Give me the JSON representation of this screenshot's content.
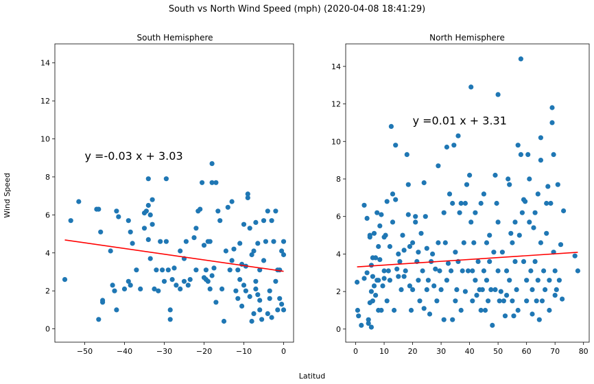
{
  "figure": {
    "suptitle": "South vs North Wind Speed (mph) (2020-04-08 18:41:29)",
    "xlabel": "Latitud",
    "ylabel": "Wind Speed"
  },
  "colors": {
    "points": "#1f77b4",
    "regression": "#ff0000"
  },
  "chart_data": [
    {
      "type": "scatter",
      "title": "South Hemisphere",
      "xlim": [
        -57.5,
        2.5
      ],
      "ylim": [
        -0.7,
        15
      ],
      "xticks": [
        -50,
        -40,
        -30,
        -20,
        -10,
        0
      ],
      "yticks": [
        0,
        2,
        4,
        6,
        8,
        10,
        12,
        14
      ],
      "grid": false,
      "annotation": {
        "text": "y =-0.03 x  + 3.03",
        "x": -50,
        "y": 8.9,
        "color": "#ff0000"
      },
      "regression": {
        "slope": -0.03,
        "intercept": 3.03,
        "x_range": [
          -55,
          0
        ]
      },
      "points": [
        [
          -55,
          2.6
        ],
        [
          -53.5,
          5.7
        ],
        [
          -51.5,
          6.7
        ],
        [
          -47,
          6.3
        ],
        [
          -46.5,
          6.3
        ],
        [
          -46.5,
          0.5
        ],
        [
          -46,
          5.1
        ],
        [
          -45.5,
          1.4
        ],
        [
          -45.5,
          1.5
        ],
        [
          -43.5,
          4.1
        ],
        [
          -43,
          2.3
        ],
        [
          -42.5,
          2.0
        ],
        [
          -42,
          1.0
        ],
        [
          -42,
          6.2
        ],
        [
          -41.5,
          5.9
        ],
        [
          -40,
          2.1
        ],
        [
          -39,
          5.7
        ],
        [
          -39,
          2.5
        ],
        [
          -38.5,
          5.1
        ],
        [
          -38,
          4.5
        ],
        [
          -38.5,
          2.3
        ],
        [
          -37,
          3.1
        ],
        [
          -36,
          2.1
        ],
        [
          -35,
          5.3
        ],
        [
          -35,
          6.1
        ],
        [
          -34.5,
          6.2
        ],
        [
          -34,
          6.5
        ],
        [
          -34,
          4.7
        ],
        [
          -34,
          7.9
        ],
        [
          -33.5,
          6.0
        ],
        [
          -33.5,
          3.7
        ],
        [
          -33,
          6.8
        ],
        [
          -33,
          5.5
        ],
        [
          -32.5,
          2.1
        ],
        [
          -32,
          3.1
        ],
        [
          -31.5,
          2.0
        ],
        [
          -31,
          4.6
        ],
        [
          -30.5,
          3.1
        ],
        [
          -30,
          2.5
        ],
        [
          -29.5,
          7.9
        ],
        [
          -29.5,
          4.6
        ],
        [
          -29,
          3.1
        ],
        [
          -28.5,
          1.0
        ],
        [
          -28.5,
          0.5
        ],
        [
          -28,
          2.6
        ],
        [
          -27.5,
          3.2
        ],
        [
          -27,
          2.3
        ],
        [
          -26,
          4.1
        ],
        [
          -26,
          2.1
        ],
        [
          -25,
          3.7
        ],
        [
          -25,
          2.5
        ],
        [
          -24.5,
          4.6
        ],
        [
          -24,
          2.3
        ],
        [
          -23.5,
          2.6
        ],
        [
          -22.5,
          4.8
        ],
        [
          -22,
          5.3
        ],
        [
          -22,
          3.1
        ],
        [
          -21.5,
          6.2
        ],
        [
          -21,
          6.3
        ],
        [
          -20.5,
          7.7
        ],
        [
          -20,
          4.4
        ],
        [
          -20,
          2.7
        ],
        [
          -19.5,
          2.6
        ],
        [
          -19.5,
          3.1
        ],
        [
          -19,
          4.6
        ],
        [
          -19,
          2.5
        ],
        [
          -18.5,
          2.1
        ],
        [
          -18,
          8.7
        ],
        [
          -18,
          7.7
        ],
        [
          -18.5,
          4.6
        ],
        [
          -18,
          2.8
        ],
        [
          -17.5,
          3.2
        ],
        [
          -17,
          1.4
        ],
        [
          -17,
          7.7
        ],
        [
          -16.5,
          6.2
        ],
        [
          -16,
          5.7
        ],
        [
          -15.5,
          2.1
        ],
        [
          -15,
          0.4
        ],
        [
          -14.5,
          4.1
        ],
        [
          -14,
          6.4
        ],
        [
          -13.5,
          3.1
        ],
        [
          -13,
          6.7
        ],
        [
          -13,
          3.6
        ],
        [
          -12.5,
          4.2
        ],
        [
          -12,
          2.0
        ],
        [
          -11.5,
          3.1
        ],
        [
          -11.5,
          1.6
        ],
        [
          -11,
          2.6
        ],
        [
          -11,
          4.5
        ],
        [
          -10.5,
          1.2
        ],
        [
          -10.5,
          3.4
        ],
        [
          -10,
          5.5
        ],
        [
          -10,
          2.3
        ],
        [
          -9.5,
          2.0
        ],
        [
          -9.5,
          3.3
        ],
        [
          -9,
          7.1
        ],
        [
          -9,
          6.9
        ],
        [
          -8.5,
          1.7
        ],
        [
          -8.5,
          5.3
        ],
        [
          -8,
          3.9
        ],
        [
          -8,
          0.4
        ],
        [
          -7.5,
          0.8
        ],
        [
          -7.5,
          4.1
        ],
        [
          -7,
          2.5
        ],
        [
          -7,
          2.1
        ],
        [
          -7,
          5.6
        ],
        [
          -6.5,
          1.8
        ],
        [
          -6.5,
          4.5
        ],
        [
          -6,
          3.1
        ],
        [
          -6,
          1.5
        ],
        [
          -6,
          1.0
        ],
        [
          -5.5,
          0.5
        ],
        [
          -5,
          3.6
        ],
        [
          -5,
          5.7
        ],
        [
          -4.5,
          4.6
        ],
        [
          -4,
          6.2
        ],
        [
          -4,
          0.8
        ],
        [
          -3.5,
          2.0
        ],
        [
          -3.5,
          1.6
        ],
        [
          -3,
          5.7
        ],
        [
          -3,
          0.6
        ],
        [
          -2.5,
          4.6
        ],
        [
          -2,
          2.5
        ],
        [
          -2,
          6.2
        ],
        [
          -1.5,
          1.0
        ],
        [
          -1.5,
          3.1
        ],
        [
          -1,
          3.1
        ],
        [
          -1,
          1.6
        ],
        [
          -0.5,
          4.1
        ],
        [
          -0.5,
          1.3
        ],
        [
          0,
          4.6
        ],
        [
          0,
          3.9
        ],
        [
          0,
          1.0
        ]
      ]
    },
    {
      "type": "scatter",
      "title": "North Hemisphere",
      "xlim": [
        -3.5,
        82
      ],
      "ylim": [
        -0.7,
        15.2
      ],
      "xticks": [
        0,
        10,
        20,
        30,
        40,
        50,
        60,
        70,
        80
      ],
      "yticks": [
        0,
        2,
        4,
        6,
        8,
        10,
        12,
        14
      ],
      "grid": false,
      "annotation": {
        "text": "y =0.01 x  + 3.31",
        "x": 20,
        "y": 10.9,
        "color": "#ff0000"
      },
      "regression": {
        "slope": 0.01,
        "intercept": 3.31,
        "x_range": [
          0.5,
          78
        ]
      },
      "points": [
        [
          0.5,
          2.5
        ],
        [
          0.7,
          1.0
        ],
        [
          1,
          0.7
        ],
        [
          2,
          0.2
        ],
        [
          3,
          6.6
        ],
        [
          3,
          2.7
        ],
        [
          4,
          5.9
        ],
        [
          4,
          3.0
        ],
        [
          4.5,
          0.5
        ],
        [
          4.5,
          0.3
        ],
        [
          5,
          4.9
        ],
        [
          5,
          5.0
        ],
        [
          5,
          1.4
        ],
        [
          5.5,
          2.0
        ],
        [
          5.5,
          0.1
        ],
        [
          5.5,
          3.4
        ],
        [
          6,
          2.8
        ],
        [
          6,
          1.5
        ],
        [
          6,
          3.8
        ],
        [
          6.5,
          5.1
        ],
        [
          6.5,
          2.3
        ],
        [
          7,
          3.8
        ],
        [
          7,
          1.8
        ],
        [
          7.5,
          6.2
        ],
        [
          7.5,
          2.6
        ],
        [
          8,
          4.4
        ],
        [
          8,
          2.6
        ],
        [
          8,
          1.0
        ],
        [
          8.5,
          5.5
        ],
        [
          8.5,
          3.7
        ],
        [
          9,
          1.0
        ],
        [
          9,
          6.1
        ],
        [
          9.5,
          2.3
        ],
        [
          10,
          4.9
        ],
        [
          10,
          3.1
        ],
        [
          10,
          2.7
        ],
        [
          10.5,
          5.0
        ],
        [
          11,
          6.8
        ],
        [
          11,
          1.5
        ],
        [
          11.5,
          3.1
        ],
        [
          12,
          4.4
        ],
        [
          12,
          2.6
        ],
        [
          12.5,
          10.8
        ],
        [
          13,
          7.2
        ],
        [
          13,
          5.7
        ],
        [
          13.5,
          1.0
        ],
        [
          14,
          9.8
        ],
        [
          14,
          6.9
        ],
        [
          14.5,
          3.2
        ],
        [
          15,
          4.0
        ],
        [
          15,
          2.8
        ],
        [
          15.5,
          3.6
        ],
        [
          16,
          2.1
        ],
        [
          16.5,
          5.0
        ],
        [
          17,
          4.2
        ],
        [
          17,
          2.8
        ],
        [
          17.5,
          3.1
        ],
        [
          18,
          9.3
        ],
        [
          18.5,
          7.7
        ],
        [
          18.5,
          6.1
        ],
        [
          19,
          2.3
        ],
        [
          19,
          4.4
        ],
        [
          19.5,
          1.0
        ],
        [
          20,
          4.6
        ],
        [
          20,
          2.1
        ],
        [
          21,
          6.0
        ],
        [
          21,
          5.7
        ],
        [
          21.5,
          3.6
        ],
        [
          22,
          2.6
        ],
        [
          22,
          4.1
        ],
        [
          22.5,
          1.5
        ],
        [
          23,
          5.1
        ],
        [
          23.5,
          3.1
        ],
        [
          24,
          7.8
        ],
        [
          24,
          1.1
        ],
        [
          24.5,
          6.0
        ],
        [
          25,
          4.3
        ],
        [
          25,
          2.1
        ],
        [
          25.5,
          2.6
        ],
        [
          26,
          0.8
        ],
        [
          26.5,
          3.6
        ],
        [
          27,
          4.0
        ],
        [
          27.5,
          2.3
        ],
        [
          28,
          3.2
        ],
        [
          28.5,
          1.5
        ],
        [
          29,
          8.7
        ],
        [
          29,
          4.6
        ],
        [
          29.5,
          3.1
        ],
        [
          30,
          2.1
        ],
        [
          31,
          0.5
        ],
        [
          31,
          6.2
        ],
        [
          31.5,
          4.6
        ],
        [
          32,
          9.7
        ],
        [
          32,
          2.6
        ],
        [
          32.5,
          3.5
        ],
        [
          33,
          7.2
        ],
        [
          33.5,
          3.1
        ],
        [
          34,
          0.5
        ],
        [
          34,
          6.7
        ],
        [
          34.5,
          9.8
        ],
        [
          35,
          4.1
        ],
        [
          35,
          1.5
        ],
        [
          35.5,
          2.1
        ],
        [
          36,
          10.3
        ],
        [
          36,
          3.6
        ],
        [
          36.5,
          6.2
        ],
        [
          37,
          6.7
        ],
        [
          37,
          1.0
        ],
        [
          37.5,
          3.1
        ],
        [
          38,
          4.6
        ],
        [
          38.5,
          6.7
        ],
        [
          38.5,
          2.0
        ],
        [
          39,
          7.7
        ],
        [
          39.5,
          3.1
        ],
        [
          40,
          8.2
        ],
        [
          40.5,
          12.9
        ],
        [
          40.5,
          5.7
        ],
        [
          41,
          1.5
        ],
        [
          41,
          3.1
        ],
        [
          41.5,
          4.6
        ],
        [
          42,
          2.6
        ],
        [
          42,
          6.2
        ],
        [
          42.5,
          1.8
        ],
        [
          43,
          3.6
        ],
        [
          43.5,
          2.1
        ],
        [
          44,
          6.7
        ],
        [
          44,
          1.0
        ],
        [
          44.5,
          2.1
        ],
        [
          45,
          3.1
        ],
        [
          45,
          7.2
        ],
        [
          45.5,
          1.0
        ],
        [
          46,
          4.6
        ],
        [
          46,
          2.6
        ],
        [
          46.5,
          1.5
        ],
        [
          47,
          5.0
        ],
        [
          47,
          3.6
        ],
        [
          47.5,
          2.1
        ],
        [
          48,
          0.2
        ],
        [
          48.5,
          4.1
        ],
        [
          49,
          8.2
        ],
        [
          49,
          2.1
        ],
        [
          49.5,
          6.7
        ],
        [
          50,
          12.5
        ],
        [
          50,
          5.7
        ],
        [
          50,
          3.1
        ],
        [
          50.5,
          1.5
        ],
        [
          51,
          2.0
        ],
        [
          51.5,
          4.1
        ],
        [
          52,
          1.5
        ],
        [
          52.5,
          0.7
        ],
        [
          53,
          3.1
        ],
        [
          53,
          1.8
        ],
        [
          53.5,
          8.0
        ],
        [
          54,
          7.7
        ],
        [
          54,
          2.6
        ],
        [
          54.5,
          5.1
        ],
        [
          55,
          4.6
        ],
        [
          55,
          1.5
        ],
        [
          55.5,
          0.7
        ],
        [
          56,
          5.7
        ],
        [
          56,
          3.6
        ],
        [
          56.5,
          2.1
        ],
        [
          57,
          9.8
        ],
        [
          57,
          1.0
        ],
        [
          57.5,
          5.0
        ],
        [
          58,
          14.4
        ],
        [
          58,
          9.3
        ],
        [
          58.5,
          6.2
        ],
        [
          59,
          6.9
        ],
        [
          59,
          3.6
        ],
        [
          59.5,
          6.8
        ],
        [
          60,
          2.6
        ],
        [
          60,
          1.5
        ],
        [
          60.5,
          9.3
        ],
        [
          61,
          8.0
        ],
        [
          61,
          5.7
        ],
        [
          61.5,
          3.1
        ],
        [
          62,
          2.1
        ],
        [
          62,
          0.8
        ],
        [
          62.5,
          5.4
        ],
        [
          63,
          3.6
        ],
        [
          63,
          6.2
        ],
        [
          63.5,
          1.5
        ],
        [
          64,
          7.2
        ],
        [
          64,
          2.6
        ],
        [
          64.5,
          0.5
        ],
        [
          65,
          10.2
        ],
        [
          65,
          9.0
        ],
        [
          65,
          4.6
        ],
        [
          65.5,
          1.5
        ],
        [
          66,
          3.1
        ],
        [
          66.5,
          2.1
        ],
        [
          67,
          6.7
        ],
        [
          67,
          5.1
        ],
        [
          67.5,
          7.6
        ],
        [
          68,
          2.6
        ],
        [
          68,
          1.0
        ],
        [
          68.5,
          6.7
        ],
        [
          69,
          11.8
        ],
        [
          69,
          11.0
        ],
        [
          69.5,
          9.3
        ],
        [
          69.5,
          4.1
        ],
        [
          70,
          1.8
        ],
        [
          70,
          3.1
        ],
        [
          70.5,
          2.1
        ],
        [
          71,
          7.7
        ],
        [
          71.5,
          2.6
        ],
        [
          72,
          4.5
        ],
        [
          72.5,
          1.6
        ],
        [
          73,
          6.3
        ],
        [
          77,
          3.9
        ],
        [
          78,
          3.1
        ]
      ]
    }
  ]
}
